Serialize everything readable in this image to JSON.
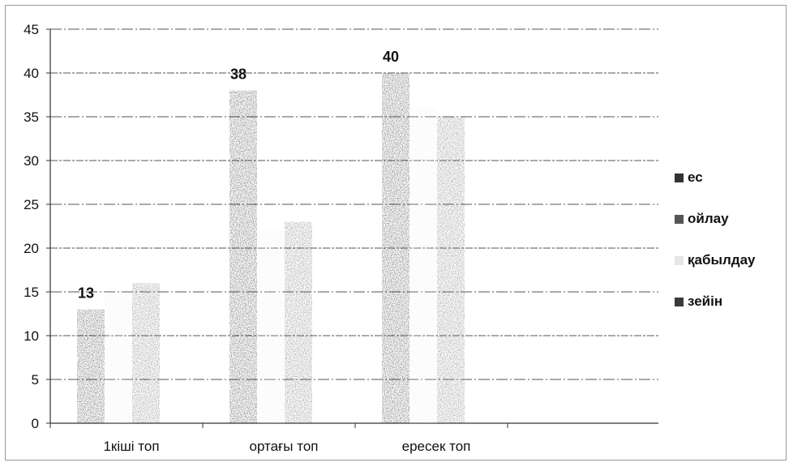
{
  "chart_data": {
    "type": "bar",
    "categories": [
      "1кіші топ",
      "ортағы топ",
      "ересек топ"
    ],
    "series": [
      {
        "name": "ес",
        "values": [
          13,
          38,
          40
        ],
        "color": "#2b2b2b",
        "data_labels": [
          "13",
          "38",
          "40"
        ]
      },
      {
        "name": "ойлау",
        "values": [
          15,
          22,
          36
        ],
        "color": "#eeeeee",
        "data_labels": [
          "",
          "",
          ""
        ]
      },
      {
        "name": "қабылдау",
        "values": [
          16,
          23,
          35
        ],
        "color": "#6a6a6a",
        "data_labels": [
          "",
          "",
          ""
        ]
      },
      {
        "name": "зейін",
        "values": [
          0,
          0,
          0
        ],
        "color": "#3a3a3a",
        "data_labels": [
          "",
          "",
          ""
        ]
      }
    ],
    "legend_items": [
      {
        "label": "ес",
        "color": "#333333"
      },
      {
        "label": "ойлау",
        "color": "#555555"
      },
      {
        "label": "қабылдау",
        "color": "#e6e6e6"
      },
      {
        "label": "зейін",
        "color": "#3a3a3a"
      }
    ],
    "ylim": [
      0,
      45
    ],
    "y_ticks": [
      "0",
      "5",
      "10",
      "15",
      "20",
      "25",
      "30",
      "35",
      "40",
      "45"
    ],
    "grid": true,
    "legend_position": "right",
    "title": "",
    "xlabel": "",
    "ylabel": ""
  }
}
